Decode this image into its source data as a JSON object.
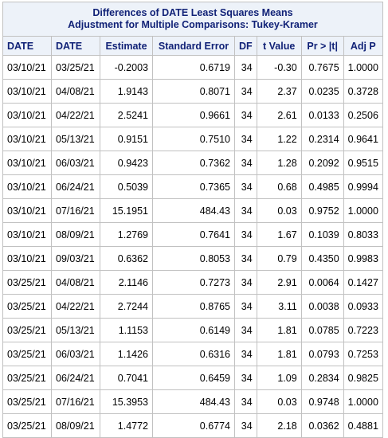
{
  "table": {
    "title": "Differences of DATE Least Squares Means",
    "subtitle": "Adjustment for Multiple Comparisons: Tukey-Kramer",
    "columns": [
      "DATE",
      "DATE",
      "Estimate",
      "Standard Error",
      "DF",
      "t Value",
      "Pr > |t|",
      "Adj P"
    ],
    "rows": [
      [
        "03/10/21",
        "03/25/21",
        "-0.2003",
        "0.6719",
        "34",
        "-0.30",
        "0.7675",
        "1.0000"
      ],
      [
        "03/10/21",
        "04/08/21",
        "1.9143",
        "0.8071",
        "34",
        "2.37",
        "0.0235",
        "0.3728"
      ],
      [
        "03/10/21",
        "04/22/21",
        "2.5241",
        "0.9661",
        "34",
        "2.61",
        "0.0133",
        "0.2506"
      ],
      [
        "03/10/21",
        "05/13/21",
        "0.9151",
        "0.7510",
        "34",
        "1.22",
        "0.2314",
        "0.9641"
      ],
      [
        "03/10/21",
        "06/03/21",
        "0.9423",
        "0.7362",
        "34",
        "1.28",
        "0.2092",
        "0.9515"
      ],
      [
        "03/10/21",
        "06/24/21",
        "0.5039",
        "0.7365",
        "34",
        "0.68",
        "0.4985",
        "0.9994"
      ],
      [
        "03/10/21",
        "07/16/21",
        "15.1951",
        "484.43",
        "34",
        "0.03",
        "0.9752",
        "1.0000"
      ],
      [
        "03/10/21",
        "08/09/21",
        "1.2769",
        "0.7641",
        "34",
        "1.67",
        "0.1039",
        "0.8033"
      ],
      [
        "03/10/21",
        "09/03/21",
        "0.6362",
        "0.8053",
        "34",
        "0.79",
        "0.4350",
        "0.9983"
      ],
      [
        "03/25/21",
        "04/08/21",
        "2.1146",
        "0.7273",
        "34",
        "2.91",
        "0.0064",
        "0.1427"
      ],
      [
        "03/25/21",
        "04/22/21",
        "2.7244",
        "0.8765",
        "34",
        "3.11",
        "0.0038",
        "0.0933"
      ],
      [
        "03/25/21",
        "05/13/21",
        "1.1153",
        "0.6149",
        "34",
        "1.81",
        "0.0785",
        "0.7223"
      ],
      [
        "03/25/21",
        "06/03/21",
        "1.1426",
        "0.6316",
        "34",
        "1.81",
        "0.0793",
        "0.7253"
      ],
      [
        "03/25/21",
        "06/24/21",
        "0.7041",
        "0.6459",
        "34",
        "1.09",
        "0.2834",
        "0.9825"
      ],
      [
        "03/25/21",
        "07/16/21",
        "15.3953",
        "484.43",
        "34",
        "0.03",
        "0.9748",
        "1.0000"
      ],
      [
        "03/25/21",
        "08/09/21",
        "1.4772",
        "0.6774",
        "34",
        "2.18",
        "0.0362",
        "0.4881"
      ]
    ]
  }
}
